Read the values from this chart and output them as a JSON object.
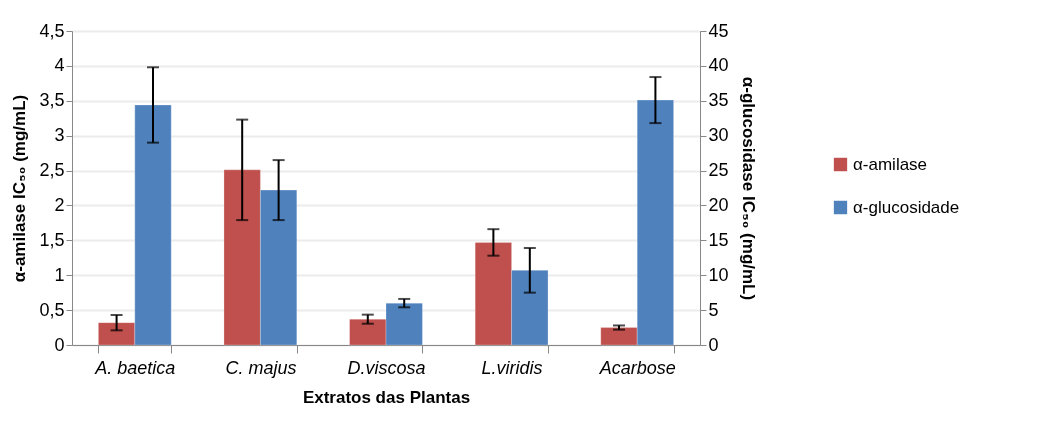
{
  "chart_data": {
    "type": "bar",
    "xlabel": "Extratos das Plantas",
    "ylabel": "α-amilase IC₅₀ (mg/mL)",
    "y2label": "α-glucosidase IC₅₀  (mg/mL)",
    "categories": [
      "A. baetica",
      "C. majus",
      "D.viscosa",
      "L.viridis",
      "Acarbose"
    ],
    "series": [
      {
        "name": "α-amilase",
        "color": "#c0504d",
        "values": [
          0.32,
          2.51,
          0.37,
          1.47,
          0.25
        ],
        "errors": [
          0.11,
          0.72,
          0.065,
          0.19,
          0.03
        ]
      },
      {
        "name": "α-glucosidade",
        "color": "#4f81bd",
        "axis": "y2",
        "values": [
          34.4,
          22.2,
          6.0,
          10.7,
          35.1
        ],
        "errors": [
          5.4,
          4.3,
          0.6,
          3.2,
          3.3
        ]
      }
    ],
    "ylim": [
      0,
      4.5
    ],
    "yticks": [
      0,
      {
        "value": 0.5,
        "label": "0,5"
      },
      1,
      {
        "value": 1.5,
        "label": "1,5"
      },
      2,
      {
        "value": 2.5,
        "label": "2,5"
      },
      3,
      {
        "value": 3.5,
        "label": "3,5"
      },
      4,
      {
        "value": 4.5,
        "label": "4,5"
      }
    ],
    "y2lim": [
      0,
      45
    ],
    "y2ticks": [
      0,
      5,
      10,
      15,
      20,
      25,
      30,
      35,
      40,
      45
    ],
    "grid": "y",
    "legend": "right"
  }
}
